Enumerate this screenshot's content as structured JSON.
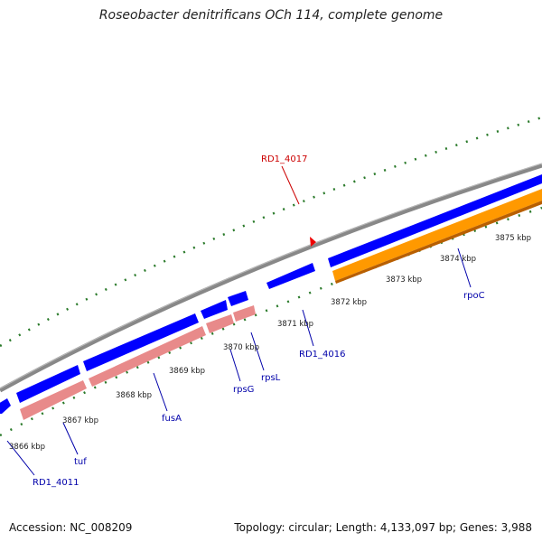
{
  "title": "Roseobacter denitrificans OCh 114, complete genome",
  "footer": {
    "accession": "Accession: NC_008209",
    "stats": "Topology: circular; Length: 4,133,097 bp; Genes: 3,988"
  },
  "colors": {
    "backbone": "#888888",
    "gene_blue": "#0000ff",
    "gene_pink": "#e88a8a",
    "gene_orange": "#ff9900",
    "tick": "#2a7a2a",
    "label_blue": "#0000aa",
    "label_red": "#cc0000"
  },
  "axis": {
    "ticks": [
      {
        "kbp": 3866,
        "label": "3866 kbp"
      },
      {
        "kbp": 3867,
        "label": "3867 kbp"
      },
      {
        "kbp": 3868,
        "label": "3868 kbp"
      },
      {
        "kbp": 3869,
        "label": "3869 kbp"
      },
      {
        "kbp": 3870,
        "label": "3870 kbp"
      },
      {
        "kbp": 3871,
        "label": "3871 kbp"
      },
      {
        "kbp": 3872,
        "label": "3872 kbp"
      },
      {
        "kbp": 3873,
        "label": "3873 kbp"
      },
      {
        "kbp": 3874,
        "label": "3874 kbp"
      },
      {
        "kbp": 3875,
        "label": "3875 kbp"
      }
    ]
  },
  "genes": [
    {
      "name": "RD1_4011",
      "color": "blue"
    },
    {
      "name": "tuf",
      "color": "pink"
    },
    {
      "name": "fusA",
      "color": "pink"
    },
    {
      "name": "rpsG",
      "color": "pink"
    },
    {
      "name": "rpsL",
      "color": "pink"
    },
    {
      "name": "RD1_4016",
      "color": "blue"
    },
    {
      "name": "rpoC",
      "color": "orange"
    },
    {
      "name": "RD1_4017",
      "color": "red-marker"
    }
  ]
}
